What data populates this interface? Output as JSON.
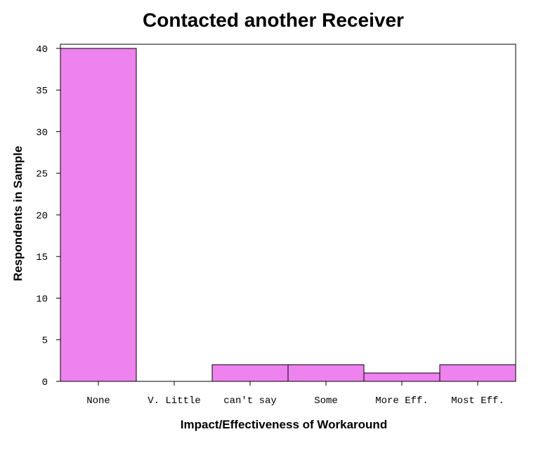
{
  "chart_data": {
    "type": "bar",
    "title": "Contacted another Receiver",
    "xlabel": "Impact/Effectiveness of Workaround",
    "ylabel": "Respondents in Sample",
    "categories": [
      "None",
      "V. Little",
      "can't say",
      "Some",
      "More Eff.",
      "Most Eff."
    ],
    "values": [
      40,
      0,
      2,
      2,
      1,
      2
    ],
    "ylim": [
      0,
      40.5
    ],
    "yticks": [
      0,
      5,
      10,
      15,
      20,
      25,
      30,
      35,
      40
    ],
    "grid": false,
    "legend": "none",
    "bar_color": "#ee82ee"
  }
}
